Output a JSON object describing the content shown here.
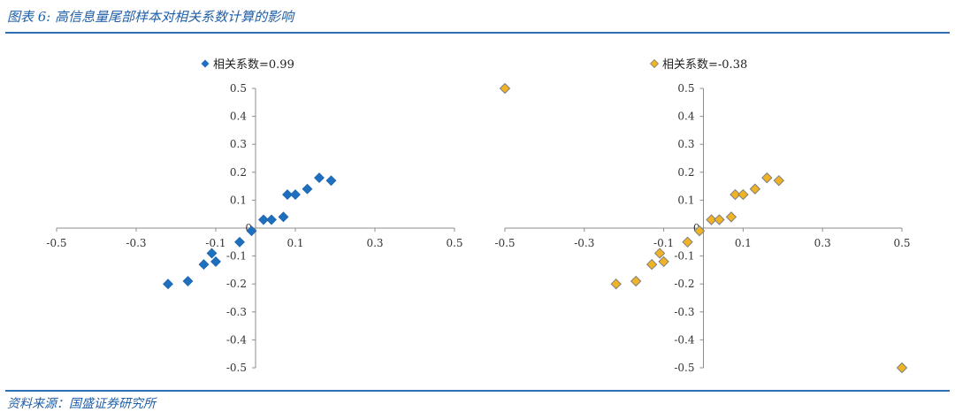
{
  "figure_title": "图表 6: 高信息量尾部样本对相关系数计算的影响",
  "source": "资料来源：国盛证券研究所",
  "colors": {
    "blue": "#1f6fbf",
    "gold": "#f0b323",
    "rule": "#2f6fb5"
  },
  "chart_data": [
    {
      "type": "scatter",
      "legend": "相关系数=0.99",
      "xlim": [
        -0.5,
        0.5
      ],
      "ylim": [
        -0.5,
        0.5
      ],
      "xticks": [
        -0.5,
        -0.3,
        -0.1,
        0.1,
        0.3,
        0.5
      ],
      "xtick_labels": [
        "-0.5",
        "-0.3",
        "-0.1",
        "0.1",
        "0.3",
        "0.5"
      ],
      "yticks": [
        0.5,
        0.4,
        0.3,
        0.2,
        0.1,
        0,
        -0.1,
        -0.2,
        -0.3,
        -0.4,
        -0.5
      ],
      "ytick_labels": [
        "0.5",
        "0.4",
        "0.3",
        "0.2",
        "0.1",
        "0",
        "-0.1",
        "-0.2",
        "-0.3",
        "-0.4",
        "-0.5"
      ],
      "marker_color": "#1f6fbf",
      "points": [
        [
          -0.22,
          -0.2
        ],
        [
          -0.17,
          -0.19
        ],
        [
          -0.13,
          -0.13
        ],
        [
          -0.11,
          -0.09
        ],
        [
          -0.1,
          -0.12
        ],
        [
          -0.04,
          -0.05
        ],
        [
          -0.01,
          -0.01
        ],
        [
          0.02,
          0.03
        ],
        [
          0.04,
          0.03
        ],
        [
          0.07,
          0.04
        ],
        [
          0.08,
          0.12
        ],
        [
          0.1,
          0.12
        ],
        [
          0.13,
          0.14
        ],
        [
          0.16,
          0.18
        ],
        [
          0.19,
          0.17
        ]
      ]
    },
    {
      "type": "scatter",
      "legend": "相关系数=-0.38",
      "xlim": [
        -0.5,
        0.5
      ],
      "ylim": [
        -0.5,
        0.5
      ],
      "xticks": [
        -0.5,
        -0.3,
        -0.1,
        0.1,
        0.3,
        0.5
      ],
      "xtick_labels": [
        "-0.5",
        "-0.3",
        "-0.1",
        "0.1",
        "0.3",
        "0.5"
      ],
      "yticks": [
        0.5,
        0.4,
        0.3,
        0.2,
        0.1,
        0,
        -0.1,
        -0.2,
        -0.3,
        -0.4,
        -0.5
      ],
      "ytick_labels": [
        "0.5",
        "0.4",
        "0.3",
        "0.2",
        "0.1",
        "0",
        "-0.1",
        "-0.2",
        "-0.3",
        "-0.4",
        "-0.5"
      ],
      "marker_color": "#f0b323",
      "points": [
        [
          -0.5,
          0.5
        ],
        [
          -0.22,
          -0.2
        ],
        [
          -0.17,
          -0.19
        ],
        [
          -0.13,
          -0.13
        ],
        [
          -0.11,
          -0.09
        ],
        [
          -0.1,
          -0.12
        ],
        [
          -0.04,
          -0.05
        ],
        [
          -0.01,
          -0.01
        ],
        [
          0.02,
          0.03
        ],
        [
          0.04,
          0.03
        ],
        [
          0.07,
          0.04
        ],
        [
          0.08,
          0.12
        ],
        [
          0.1,
          0.12
        ],
        [
          0.13,
          0.14
        ],
        [
          0.16,
          0.18
        ],
        [
          0.19,
          0.17
        ],
        [
          0.5,
          -0.5
        ]
      ]
    }
  ]
}
